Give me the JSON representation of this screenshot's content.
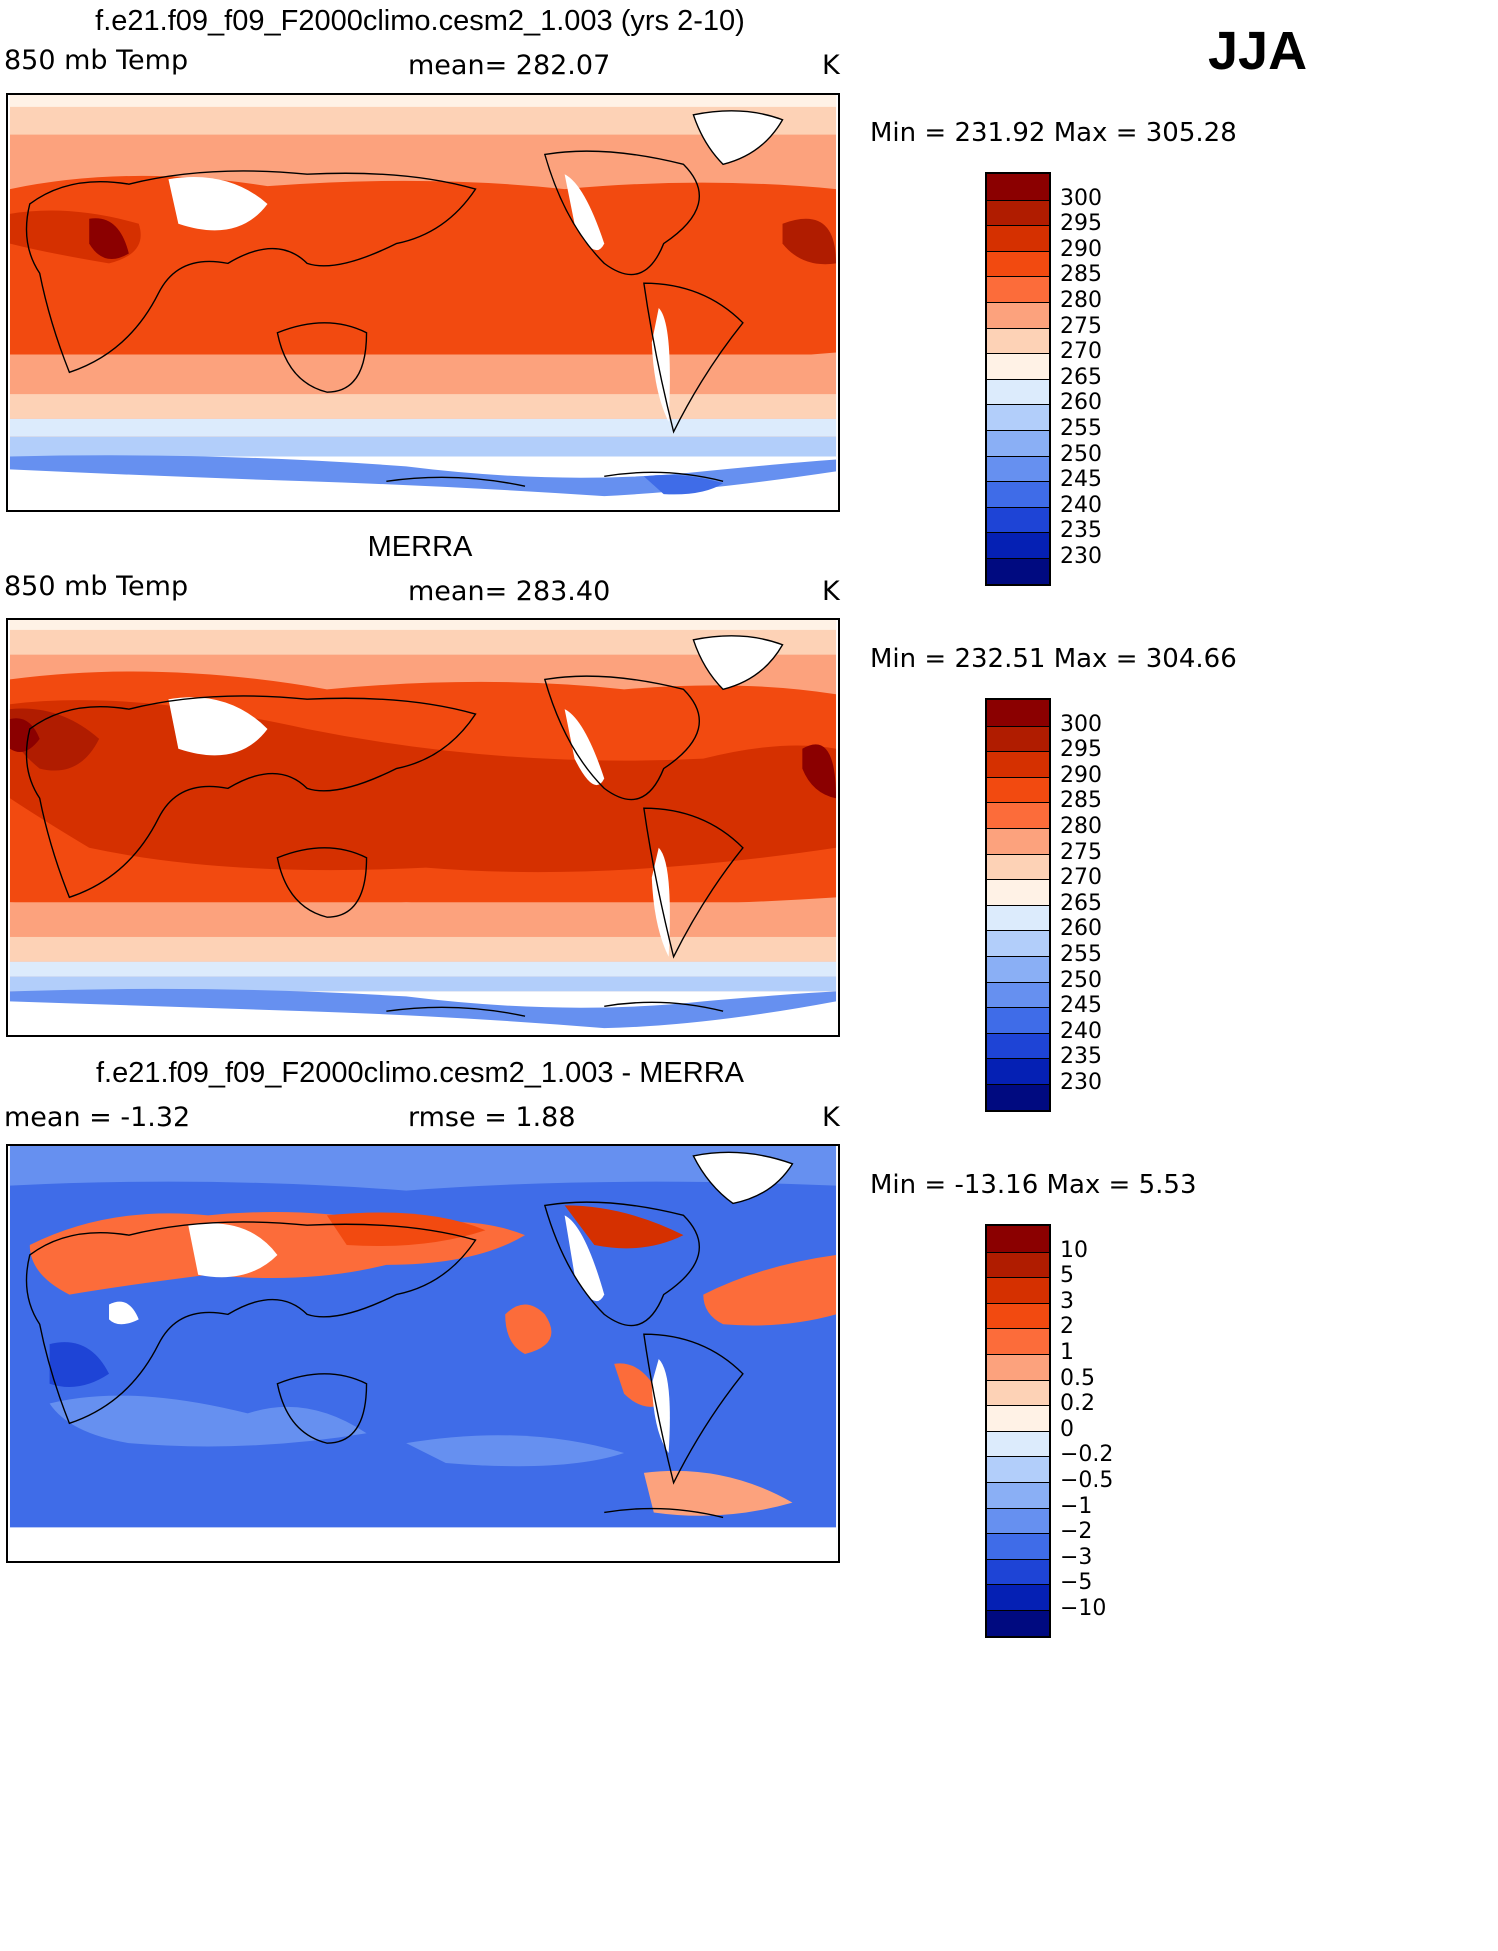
{
  "season": "JJA",
  "panels": [
    {
      "id": "model",
      "title": "f.e21.f09_f09_F2000climo.cesm2_1.003 (yrs 2-10)",
      "left_label": "850 mb Temp",
      "center_label": "mean= 282.07",
      "units": "K",
      "minmax": "Min = 231.92 Max = 305.28",
      "colorbar": {
        "labels": [
          "300",
          "295",
          "290",
          "285",
          "280",
          "275",
          "270",
          "265",
          "260",
          "255",
          "250",
          "245",
          "240",
          "235",
          "230"
        ],
        "colors": [
          "#8b0000",
          "#b01c00",
          "#d53000",
          "#f24a10",
          "#fc6c3a",
          "#fca27d",
          "#fdd2b6",
          "#fff2e6",
          "#dcebfc",
          "#b2cefa",
          "#8aaff5",
          "#6690f0",
          "#3f6ce8",
          "#1e44d6",
          "#0520b4",
          "#000a80"
        ]
      }
    },
    {
      "id": "obs",
      "title": "MERRA",
      "left_label": "850 mb Temp",
      "center_label": "mean= 283.40",
      "units": "K",
      "minmax": "Min = 232.51 Max = 304.66",
      "colorbar": {
        "labels": [
          "300",
          "295",
          "290",
          "285",
          "280",
          "275",
          "270",
          "265",
          "260",
          "255",
          "250",
          "245",
          "240",
          "235",
          "230"
        ],
        "colors": [
          "#8b0000",
          "#b01c00",
          "#d53000",
          "#f24a10",
          "#fc6c3a",
          "#fca27d",
          "#fdd2b6",
          "#fff2e6",
          "#dcebfc",
          "#b2cefa",
          "#8aaff5",
          "#6690f0",
          "#3f6ce8",
          "#1e44d6",
          "#0520b4",
          "#000a80"
        ]
      }
    },
    {
      "id": "diff",
      "title": "f.e21.f09_f09_F2000climo.cesm2_1.003 - MERRA",
      "left_label": "mean =   -1.32",
      "center_label": "rmse =    1.88",
      "units": "K",
      "minmax": "Min = -13.16 Max =    5.53",
      "colorbar": {
        "labels": [
          "10",
          "5",
          "3",
          "2",
          "1",
          "0.5",
          "0.2",
          "0",
          "-0.2",
          "-0.5",
          "-1",
          "-2",
          "-3",
          "-5",
          "-10"
        ],
        "colors": [
          "#8b0000",
          "#b01c00",
          "#d53000",
          "#f24a10",
          "#fc6c3a",
          "#fca27d",
          "#fdd2b6",
          "#fff2e6",
          "#dcebfc",
          "#b2cefa",
          "#8aaff5",
          "#6690f0",
          "#3f6ce8",
          "#1e44d6",
          "#0520b4",
          "#000a80"
        ]
      }
    }
  ]
}
